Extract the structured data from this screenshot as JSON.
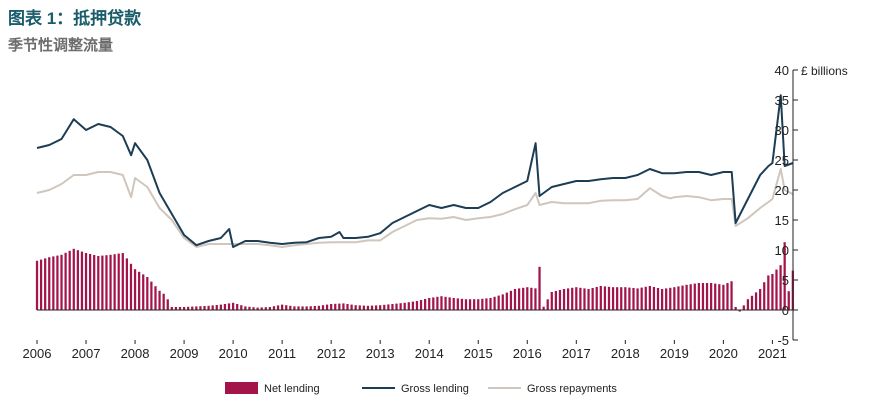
{
  "title": "图表 1：抵押贷款",
  "subtitle": "季节性调整流量",
  "colors": {
    "net_lending": "#a3154a",
    "gross_lending": "#1c3d54",
    "gross_repayments": "#cfc6bd",
    "title": "#1a5c6b",
    "subtitle": "#6d6d6d"
  },
  "chart_data": {
    "type": "bar+line",
    "ylabel": "£ billions",
    "ylim": [
      -5,
      40
    ],
    "yticks": [
      -5,
      0,
      5,
      10,
      15,
      20,
      25,
      30,
      35,
      40
    ],
    "y_axis_side": "right",
    "xlim": [
      2006.0,
      2021.42
    ],
    "xticks": [
      "2006",
      "2007",
      "2008",
      "2009",
      "2010",
      "2011",
      "2012",
      "2013",
      "2014",
      "2015",
      "2016",
      "2017",
      "2018",
      "2019",
      "2020",
      "2021"
    ],
    "grid": false,
    "legend_position": "bottom",
    "legend": [
      "Net lending",
      "Gross lending",
      "Gross repayments"
    ],
    "series": [
      {
        "name": "Net lending",
        "kind": "bar",
        "color": "#a3154a",
        "points": [
          [
            2006.0,
            8.2
          ],
          [
            2006.25,
            8.8
          ],
          [
            2006.5,
            9.2
          ],
          [
            2006.75,
            10.2
          ],
          [
            2007.0,
            9.5
          ],
          [
            2007.25,
            9.0
          ],
          [
            2007.5,
            9.2
          ],
          [
            2007.75,
            9.5
          ],
          [
            2008.0,
            6.8
          ],
          [
            2008.25,
            5.5
          ],
          [
            2008.5,
            3.2
          ],
          [
            2008.62,
            2.5
          ],
          [
            2008.75,
            0.5
          ],
          [
            2009.0,
            0.5
          ],
          [
            2009.25,
            0.6
          ],
          [
            2009.5,
            0.7
          ],
          [
            2009.75,
            0.9
          ],
          [
            2010.0,
            1.2
          ],
          [
            2010.25,
            0.6
          ],
          [
            2010.5,
            0.4
          ],
          [
            2010.75,
            0.5
          ],
          [
            2011.0,
            0.9
          ],
          [
            2011.25,
            0.6
          ],
          [
            2011.5,
            0.6
          ],
          [
            2011.75,
            0.7
          ],
          [
            2012.0,
            1.0
          ],
          [
            2012.25,
            1.1
          ],
          [
            2012.5,
            0.8
          ],
          [
            2012.75,
            0.7
          ],
          [
            2013.0,
            0.8
          ],
          [
            2013.25,
            1.0
          ],
          [
            2013.5,
            1.2
          ],
          [
            2013.75,
            1.5
          ],
          [
            2014.0,
            2.0
          ],
          [
            2014.25,
            2.3
          ],
          [
            2014.5,
            2.0
          ],
          [
            2014.75,
            1.8
          ],
          [
            2015.0,
            1.8
          ],
          [
            2015.25,
            2.0
          ],
          [
            2015.5,
            2.6
          ],
          [
            2015.75,
            3.5
          ],
          [
            2016.0,
            3.8
          ],
          [
            2016.17,
            3.6
          ],
          [
            2016.25,
            7.2
          ],
          [
            2016.33,
            0.5
          ],
          [
            2016.5,
            3.0
          ],
          [
            2016.75,
            3.5
          ],
          [
            2017.0,
            3.8
          ],
          [
            2017.25,
            3.5
          ],
          [
            2017.5,
            4.0
          ],
          [
            2017.75,
            3.8
          ],
          [
            2018.0,
            3.8
          ],
          [
            2018.25,
            3.6
          ],
          [
            2018.5,
            4.0
          ],
          [
            2018.75,
            3.5
          ],
          [
            2019.0,
            3.8
          ],
          [
            2019.25,
            4.2
          ],
          [
            2019.5,
            4.5
          ],
          [
            2019.75,
            4.5
          ],
          [
            2020.0,
            4.2
          ],
          [
            2020.17,
            4.8
          ],
          [
            2020.25,
            0.5
          ],
          [
            2020.33,
            -0.3
          ],
          [
            2020.5,
            1.8
          ],
          [
            2020.75,
            3.5
          ],
          [
            2020.92,
            5.8
          ],
          [
            2021.0,
            6.0
          ],
          [
            2021.17,
            7.5
          ],
          [
            2021.25,
            11.3
          ],
          [
            2021.33,
            3.0
          ],
          [
            2021.42,
            6.7
          ]
        ]
      },
      {
        "name": "Gross lending",
        "kind": "line",
        "color": "#1c3d54",
        "points": [
          [
            2006.0,
            27.0
          ],
          [
            2006.25,
            27.5
          ],
          [
            2006.5,
            28.5
          ],
          [
            2006.75,
            31.8
          ],
          [
            2007.0,
            30.0
          ],
          [
            2007.25,
            31.0
          ],
          [
            2007.5,
            30.5
          ],
          [
            2007.75,
            29.0
          ],
          [
            2007.92,
            25.8
          ],
          [
            2008.0,
            27.8
          ],
          [
            2008.25,
            25.0
          ],
          [
            2008.5,
            19.5
          ],
          [
            2008.75,
            16.0
          ],
          [
            2009.0,
            12.5
          ],
          [
            2009.25,
            10.8
          ],
          [
            2009.5,
            11.5
          ],
          [
            2009.75,
            12.0
          ],
          [
            2009.92,
            13.5
          ],
          [
            2010.0,
            10.5
          ],
          [
            2010.25,
            11.5
          ],
          [
            2010.5,
            11.5
          ],
          [
            2010.75,
            11.2
          ],
          [
            2011.0,
            11.0
          ],
          [
            2011.25,
            11.2
          ],
          [
            2011.5,
            11.3
          ],
          [
            2011.75,
            12.0
          ],
          [
            2012.0,
            12.2
          ],
          [
            2012.17,
            13.0
          ],
          [
            2012.25,
            12.0
          ],
          [
            2012.5,
            12.0
          ],
          [
            2012.75,
            12.2
          ],
          [
            2013.0,
            12.8
          ],
          [
            2013.25,
            14.5
          ],
          [
            2013.5,
            15.5
          ],
          [
            2013.75,
            16.5
          ],
          [
            2014.0,
            17.5
          ],
          [
            2014.25,
            17.0
          ],
          [
            2014.5,
            17.5
          ],
          [
            2014.75,
            17.0
          ],
          [
            2015.0,
            17.0
          ],
          [
            2015.25,
            18.0
          ],
          [
            2015.5,
            19.5
          ],
          [
            2015.75,
            20.5
          ],
          [
            2016.0,
            21.5
          ],
          [
            2016.17,
            27.8
          ],
          [
            2016.25,
            19.0
          ],
          [
            2016.5,
            20.5
          ],
          [
            2016.75,
            21.0
          ],
          [
            2017.0,
            21.5
          ],
          [
            2017.25,
            21.5
          ],
          [
            2017.5,
            21.8
          ],
          [
            2017.75,
            22.0
          ],
          [
            2018.0,
            22.0
          ],
          [
            2018.25,
            22.5
          ],
          [
            2018.5,
            23.5
          ],
          [
            2018.75,
            22.8
          ],
          [
            2019.0,
            22.8
          ],
          [
            2019.25,
            23.0
          ],
          [
            2019.5,
            23.0
          ],
          [
            2019.75,
            22.5
          ],
          [
            2020.0,
            23.0
          ],
          [
            2020.17,
            23.0
          ],
          [
            2020.25,
            14.5
          ],
          [
            2020.5,
            18.5
          ],
          [
            2020.75,
            22.5
          ],
          [
            2020.92,
            24.0
          ],
          [
            2021.0,
            24.5
          ],
          [
            2021.17,
            35.8
          ],
          [
            2021.25,
            24.0
          ],
          [
            2021.42,
            24.5
          ]
        ]
      },
      {
        "name": "Gross repayments",
        "kind": "line",
        "color": "#cfc6bd",
        "points": [
          [
            2006.0,
            19.5
          ],
          [
            2006.25,
            20.0
          ],
          [
            2006.5,
            21.0
          ],
          [
            2006.75,
            22.5
          ],
          [
            2007.0,
            22.5
          ],
          [
            2007.25,
            23.0
          ],
          [
            2007.5,
            23.0
          ],
          [
            2007.75,
            22.5
          ],
          [
            2007.92,
            18.8
          ],
          [
            2008.0,
            22.0
          ],
          [
            2008.25,
            20.5
          ],
          [
            2008.5,
            17.0
          ],
          [
            2008.75,
            15.0
          ],
          [
            2009.0,
            12.0
          ],
          [
            2009.25,
            10.5
          ],
          [
            2009.5,
            11.0
          ],
          [
            2009.75,
            11.0
          ],
          [
            2010.0,
            11.0
          ],
          [
            2010.25,
            11.0
          ],
          [
            2010.5,
            11.0
          ],
          [
            2010.75,
            10.8
          ],
          [
            2011.0,
            10.5
          ],
          [
            2011.25,
            10.8
          ],
          [
            2011.5,
            11.0
          ],
          [
            2011.75,
            11.2
          ],
          [
            2012.0,
            11.3
          ],
          [
            2012.25,
            11.3
          ],
          [
            2012.5,
            11.3
          ],
          [
            2012.75,
            11.6
          ],
          [
            2013.0,
            11.6
          ],
          [
            2013.25,
            13.0
          ],
          [
            2013.5,
            14.0
          ],
          [
            2013.75,
            15.0
          ],
          [
            2014.0,
            15.3
          ],
          [
            2014.25,
            15.2
          ],
          [
            2014.5,
            15.5
          ],
          [
            2014.75,
            15.0
          ],
          [
            2015.0,
            15.3
          ],
          [
            2015.25,
            15.5
          ],
          [
            2015.5,
            16.0
          ],
          [
            2015.75,
            16.8
          ],
          [
            2016.0,
            17.5
          ],
          [
            2016.17,
            19.5
          ],
          [
            2016.25,
            17.5
          ],
          [
            2016.5,
            18.0
          ],
          [
            2016.75,
            17.8
          ],
          [
            2017.0,
            17.8
          ],
          [
            2017.25,
            17.8
          ],
          [
            2017.5,
            18.2
          ],
          [
            2017.75,
            18.3
          ],
          [
            2018.0,
            18.3
          ],
          [
            2018.25,
            18.5
          ],
          [
            2018.5,
            20.3
          ],
          [
            2018.75,
            19.0
          ],
          [
            2018.92,
            18.6
          ],
          [
            2019.0,
            18.8
          ],
          [
            2019.25,
            19.0
          ],
          [
            2019.5,
            18.8
          ],
          [
            2019.75,
            18.3
          ],
          [
            2020.0,
            18.5
          ],
          [
            2020.17,
            18.5
          ],
          [
            2020.25,
            14.0
          ],
          [
            2020.5,
            15.3
          ],
          [
            2020.75,
            17.0
          ],
          [
            2020.92,
            18.0
          ],
          [
            2021.0,
            18.5
          ],
          [
            2021.17,
            23.5
          ],
          [
            2021.25,
            20.0
          ],
          [
            2021.42,
            19.3
          ]
        ]
      }
    ]
  }
}
